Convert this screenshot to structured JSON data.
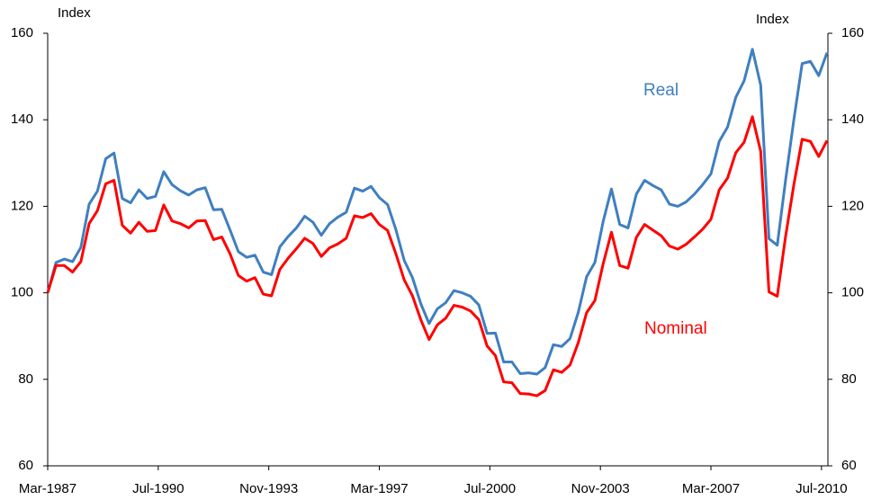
{
  "chart_data": {
    "type": "line",
    "y_label": "Index",
    "y2_label": "Index",
    "x": [
      "Mar-1987",
      "Jun-1987",
      "Sep-1987",
      "Dec-1987",
      "Mar-1988",
      "Jun-1988",
      "Sep-1988",
      "Dec-1988",
      "Mar-1989",
      "Jun-1989",
      "Sep-1989",
      "Dec-1989",
      "Mar-1990",
      "Jun-1990",
      "Sep-1990",
      "Dec-1990",
      "Mar-1991",
      "Jun-1991",
      "Sep-1991",
      "Dec-1991",
      "Mar-1992",
      "Jun-1992",
      "Sep-1992",
      "Dec-1992",
      "Mar-1993",
      "Jun-1993",
      "Sep-1993",
      "Dec-1993",
      "Mar-1994",
      "Jun-1994",
      "Sep-1994",
      "Dec-1994",
      "Mar-1995",
      "Jun-1995",
      "Sep-1995",
      "Dec-1995",
      "Mar-1996",
      "Jun-1996",
      "Sep-1996",
      "Dec-1996",
      "Mar-1997",
      "Jun-1997",
      "Sep-1997",
      "Dec-1997",
      "Mar-1998",
      "Jun-1998",
      "Sep-1998",
      "Dec-1998",
      "Mar-1999",
      "Jun-1999",
      "Sep-1999",
      "Dec-1999",
      "Mar-2000",
      "Jun-2000",
      "Sep-2000",
      "Dec-2000",
      "Mar-2001",
      "Jun-2001",
      "Sep-2001",
      "Dec-2001",
      "Mar-2002",
      "Jun-2002",
      "Sep-2002",
      "Dec-2002",
      "Mar-2003",
      "Jun-2003",
      "Sep-2003",
      "Dec-2003",
      "Mar-2004",
      "Jun-2004",
      "Sep-2004",
      "Dec-2004",
      "Mar-2005",
      "Jun-2005",
      "Sep-2005",
      "Dec-2005",
      "Mar-2006",
      "Jun-2006",
      "Sep-2006",
      "Dec-2006",
      "Mar-2007",
      "Jun-2007",
      "Sep-2007",
      "Dec-2007",
      "Mar-2008",
      "Jun-2008",
      "Sep-2008",
      "Dec-2008",
      "Mar-2009",
      "Jun-2009",
      "Sep-2009",
      "Dec-2009",
      "Mar-2010",
      "Jun-2010",
      "Sep-2010"
    ],
    "series": [
      {
        "name": "Real",
        "color": "#3f7fc0",
        "values": [
          100,
          107,
          107.8,
          107.2,
          110.5,
          120.5,
          123.5,
          131,
          132.3,
          121.8,
          120.8,
          123.8,
          121.8,
          122.3,
          128,
          125,
          123.6,
          122.6,
          123.8,
          124.3,
          119.2,
          119.3,
          114.5,
          109.5,
          108.2,
          108.7,
          104.8,
          104.2,
          110.6,
          113,
          115,
          117.7,
          116.3,
          113.3,
          116,
          117.5,
          118.6,
          124.2,
          123.5,
          124.6,
          122,
          120.4,
          114.6,
          107.5,
          103.5,
          97.5,
          92.9,
          96.3,
          97.7,
          100.5,
          100,
          99.2,
          97.2,
          90.6,
          90.7,
          84,
          84,
          81.3,
          81.5,
          81.2,
          82.7,
          88,
          87.6,
          89.4,
          95.5,
          103.7,
          107,
          116.5,
          124,
          115.8,
          115,
          122.8,
          126,
          124.8,
          123.8,
          120.5,
          120,
          121,
          122.8,
          125,
          127.5,
          135,
          138.3,
          145.2,
          149,
          156.3,
          148,
          112.5,
          111,
          126,
          140,
          153,
          153.5,
          150.2,
          155.5
        ]
      },
      {
        "name": "Nominal",
        "color": "#ff0000",
        "values": [
          100,
          106.3,
          106.3,
          104.8,
          107.2,
          116,
          119,
          125.2,
          126,
          115.6,
          113.8,
          116.3,
          114.2,
          114.4,
          120.3,
          116.6,
          116,
          115,
          116.6,
          116.7,
          112.3,
          112.9,
          109,
          104,
          102.7,
          103.5,
          99.7,
          99.3,
          105.4,
          108,
          110.2,
          112.6,
          111.4,
          108.4,
          110.4,
          111.3,
          112.6,
          117.8,
          117.4,
          118.3,
          115.8,
          114.4,
          109,
          103,
          99.3,
          93.8,
          89.2,
          92.6,
          94.1,
          97.1,
          96.7,
          95.8,
          93.8,
          87.7,
          85.5,
          79.4,
          79.2,
          76.7,
          76.6,
          76.2,
          77.4,
          82.2,
          81.6,
          83.3,
          88.5,
          95.4,
          98.2,
          106.7,
          114,
          106.3,
          105.7,
          112.8,
          115.8,
          114.5,
          113.2,
          110.8,
          110.1,
          111.2,
          112.9,
          114.7,
          117,
          123.8,
          126.5,
          132.4,
          134.8,
          140.7,
          132.7,
          100.2,
          99.2,
          113,
          125,
          135.5,
          135,
          131.5,
          135.2
        ]
      }
    ],
    "xticks": [
      "Mar-1987",
      "Jul-1990",
      "Nov-1993",
      "Mar-1997",
      "Jul-2000",
      "Nov-2003",
      "Mar-2007",
      "Jul-2010"
    ],
    "ylim": [
      60,
      160
    ],
    "yticks": [
      60,
      80,
      100,
      120,
      140,
      160
    ],
    "y2lim": [
      60,
      160
    ],
    "y2ticks": [
      60,
      80,
      100,
      120,
      140,
      160
    ],
    "grid": false
  }
}
